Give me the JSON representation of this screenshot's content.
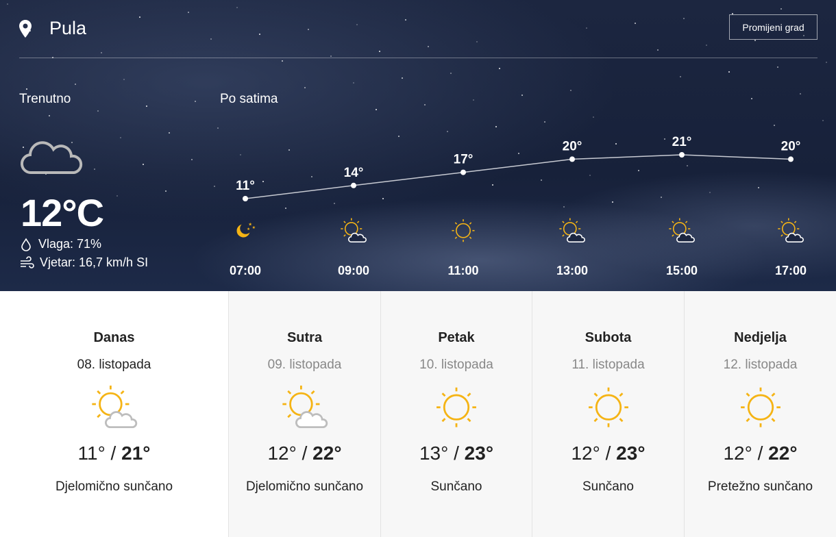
{
  "location": {
    "city": "Pula",
    "change_button": "Promijeni grad"
  },
  "current": {
    "label": "Trenutno",
    "icon": "cloud-moon-icon",
    "temperature": "12°C",
    "humidity": "Vlaga: 71%",
    "wind": "Vjetar: 16,7 km/h SI"
  },
  "hourly": {
    "label": "Po satima",
    "items": [
      {
        "time": "07:00",
        "temp": 11,
        "temp_label": "11°",
        "icon": "moon-stars"
      },
      {
        "time": "09:00",
        "temp": 14,
        "temp_label": "14°",
        "icon": "partly-sunny"
      },
      {
        "time": "11:00",
        "temp": 17,
        "temp_label": "17°",
        "icon": "sun"
      },
      {
        "time": "13:00",
        "temp": 20,
        "temp_label": "20°",
        "icon": "partly-sunny"
      },
      {
        "time": "15:00",
        "temp": 21,
        "temp_label": "21°",
        "icon": "partly-sunny"
      },
      {
        "time": "17:00",
        "temp": 20,
        "temp_label": "20°",
        "icon": "partly-sunny"
      }
    ]
  },
  "days": [
    {
      "name": "Danas",
      "date": "08. listopada",
      "min": "11°",
      "max": "21°",
      "desc": "Djelomično sunčano",
      "icon": "partly-sunny",
      "active": true
    },
    {
      "name": "Sutra",
      "date": "09. listopada",
      "min": "12°",
      "max": "22°",
      "desc": "Djelomično sunčano",
      "icon": "partly-sunny"
    },
    {
      "name": "Petak",
      "date": "10. listopada",
      "min": "13°",
      "max": "23°",
      "desc": "Sunčano",
      "icon": "sun"
    },
    {
      "name": "Subota",
      "date": "11. listopada",
      "min": "12°",
      "max": "23°",
      "desc": "Sunčano",
      "icon": "sun"
    },
    {
      "name": "Nedjelja",
      "date": "12. listopada",
      "min": "12°",
      "max": "22°",
      "desc": "Pretežno sunčano",
      "icon": "sun"
    }
  ],
  "colors": {
    "sun": "#f5b415",
    "cloud": "#bdbdbd",
    "bg": "#1a2440"
  }
}
